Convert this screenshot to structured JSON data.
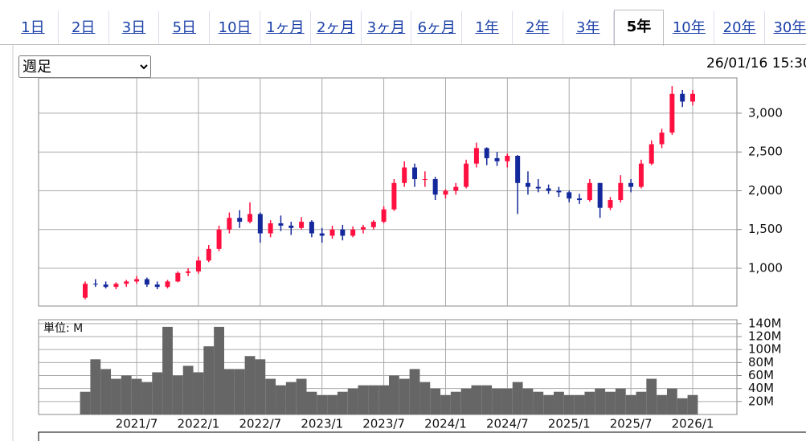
{
  "tabs": {
    "items": [
      "1日",
      "2日",
      "3日",
      "5日",
      "10日",
      "1ヶ月",
      "2ヶ月",
      "3ヶ月",
      "6ヶ月",
      "1年",
      "2年",
      "3年",
      "5年",
      "10年",
      "20年",
      "30年"
    ],
    "selected": 12
  },
  "period_select": "週足",
  "timestamp": "26/01/16 15:30",
  "chart_data": [
    {
      "type": "candlestick",
      "categories": [
        "2021/2",
        "2021/3",
        "2021/4",
        "2021/5",
        "2021/6",
        "2021/7",
        "2021/8",
        "2021/9",
        "2021/10",
        "2021/11",
        "2021/12",
        "2022/1",
        "2022/2",
        "2022/3",
        "2022/4",
        "2022/5",
        "2022/6",
        "2022/7",
        "2022/8",
        "2022/9",
        "2022/10",
        "2022/11",
        "2022/12",
        "2023/1",
        "2023/2",
        "2023/3",
        "2023/4",
        "2023/5",
        "2023/6",
        "2023/7",
        "2023/8",
        "2023/9",
        "2023/10",
        "2023/11",
        "2023/12",
        "2024/1",
        "2024/2",
        "2024/3",
        "2024/4",
        "2024/5",
        "2024/6",
        "2024/7",
        "2024/8",
        "2024/9",
        "2024/10",
        "2024/11",
        "2024/12",
        "2025/1",
        "2025/2",
        "2025/3",
        "2025/4",
        "2025/5",
        "2025/6",
        "2025/7",
        "2025/8",
        "2025/9",
        "2025/10",
        "2025/11",
        "2025/12",
        "2026/1"
      ],
      "open": [
        620,
        800,
        790,
        760,
        800,
        830,
        860,
        790,
        760,
        830,
        940,
        960,
        1100,
        1250,
        1500,
        1650,
        1600,
        1700,
        1450,
        1580,
        1550,
        1520,
        1600,
        1450,
        1420,
        1500,
        1420,
        1500,
        1530,
        1600,
        1760,
        2100,
        2300,
        2150,
        2150,
        1950,
        2000,
        2050,
        2350,
        2550,
        2420,
        2380,
        2450,
        2100,
        2050,
        2030,
        2000,
        1980,
        1900,
        1880,
        2100,
        1780,
        1880,
        2100,
        2050,
        2350,
        2600,
        2750,
        3250,
        3150
      ],
      "high": [
        830,
        860,
        830,
        820,
        850,
        900,
        880,
        830,
        850,
        960,
        1000,
        1150,
        1300,
        1550,
        1720,
        1750,
        1850,
        1720,
        1620,
        1680,
        1600,
        1660,
        1620,
        1520,
        1550,
        1560,
        1540,
        1560,
        1620,
        1800,
        2150,
        2380,
        2350,
        2250,
        2180,
        2020,
        2100,
        2400,
        2620,
        2560,
        2500,
        2480,
        2460,
        2250,
        2150,
        2080,
        2050,
        2000,
        1960,
        2150,
        2100,
        1920,
        2200,
        2150,
        2400,
        2650,
        2800,
        3350,
        3300,
        3300
      ],
      "low": [
        600,
        760,
        740,
        730,
        760,
        800,
        760,
        730,
        740,
        820,
        900,
        930,
        1080,
        1220,
        1450,
        1520,
        1580,
        1330,
        1400,
        1480,
        1430,
        1500,
        1400,
        1330,
        1380,
        1360,
        1400,
        1450,
        1500,
        1580,
        1740,
        2050,
        2050,
        2050,
        1880,
        1900,
        1950,
        2030,
        2300,
        2330,
        2320,
        2300,
        1700,
        1950,
        1980,
        1960,
        1920,
        1850,
        1830,
        1860,
        1650,
        1750,
        1850,
        1980,
        2030,
        2330,
        2550,
        2720,
        3080,
        3100
      ],
      "close": [
        800,
        790,
        760,
        800,
        830,
        860,
        790,
        760,
        830,
        940,
        960,
        1100,
        1250,
        1500,
        1650,
        1600,
        1700,
        1450,
        1580,
        1550,
        1520,
        1600,
        1450,
        1420,
        1500,
        1420,
        1500,
        1530,
        1600,
        1760,
        2100,
        2300,
        2150,
        2150,
        1950,
        2000,
        2050,
        2350,
        2550,
        2420,
        2380,
        2450,
        2100,
        2050,
        2030,
        2000,
        1980,
        1900,
        1880,
        2100,
        1780,
        1880,
        2100,
        2050,
        2350,
        2600,
        2750,
        3250,
        3150,
        3250
      ],
      "up_color": "#ff1040",
      "down_color": "#13289a",
      "ylim": [
        513,
        3455
      ],
      "yticks": [
        {
          "value": 1000,
          "label": "1,000"
        },
        {
          "value": 1500,
          "label": "1,500"
        },
        {
          "value": 2000,
          "label": "2,000"
        },
        {
          "value": 2500,
          "label": "2,500"
        },
        {
          "value": 3000,
          "label": "3,000"
        }
      ],
      "grid": true
    },
    {
      "type": "bar",
      "unit_label": "単位: M",
      "values": [
        35,
        85,
        70,
        55,
        60,
        55,
        50,
        65,
        135,
        60,
        75,
        65,
        105,
        135,
        70,
        70,
        90,
        85,
        55,
        45,
        50,
        55,
        35,
        30,
        30,
        35,
        40,
        45,
        45,
        45,
        60,
        55,
        70,
        50,
        40,
        30,
        35,
        40,
        45,
        45,
        40,
        40,
        50,
        40,
        35,
        30,
        35,
        30,
        30,
        35,
        40,
        35,
        40,
        30,
        35,
        55,
        30,
        40,
        25,
        30
      ],
      "color": "#666666",
      "ylim": [
        0,
        146
      ],
      "yticks": [
        {
          "value": 20,
          "label": "20M"
        },
        {
          "value": 40,
          "label": "40M"
        },
        {
          "value": 60,
          "label": "60M"
        },
        {
          "value": 80,
          "label": "80M"
        },
        {
          "value": 100,
          "label": "100M"
        },
        {
          "value": 120,
          "label": "120M"
        },
        {
          "value": 140,
          "label": "140M"
        }
      ],
      "xticks": [
        "2021/7",
        "2022/1",
        "2022/7",
        "2023/1",
        "2023/7",
        "2024/1",
        "2024/7",
        "2025/1",
        "2025/7",
        "2026/1"
      ],
      "grid": true
    }
  ]
}
